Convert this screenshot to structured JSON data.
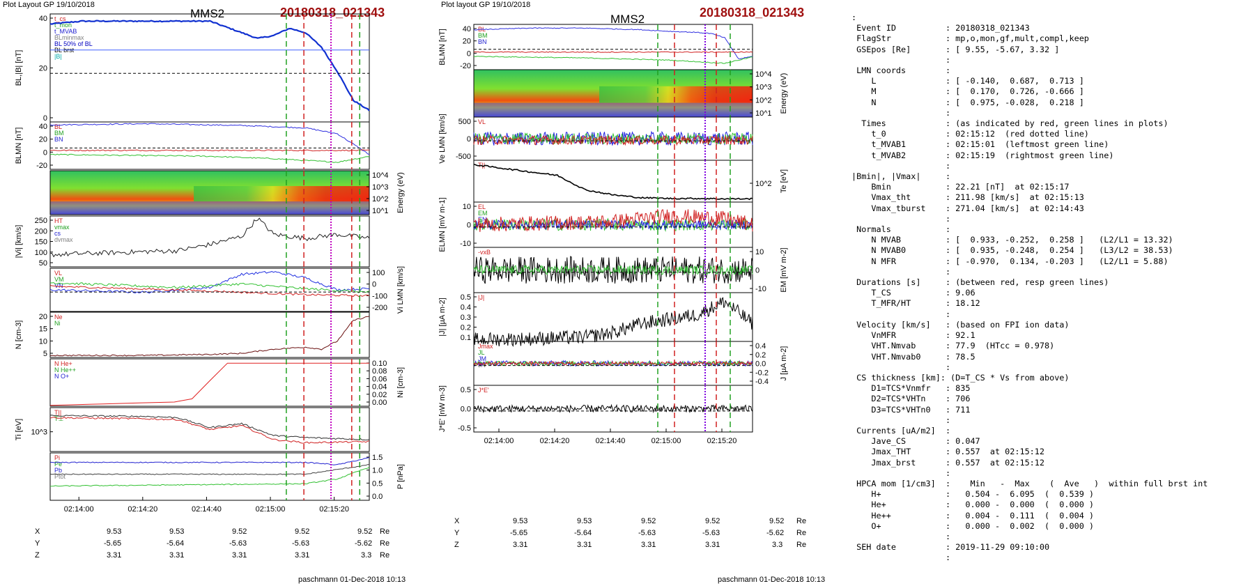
{
  "left": {
    "header": {
      "layout": "Plot Layout GP 19/10/2018",
      "sc": "MMS2",
      "event": "20180318_021343"
    },
    "time_ticks": [
      "02:14:00",
      "02:14:20",
      "02:14:40",
      "02:15:00",
      "02:15:20"
    ],
    "panels": [
      {
        "id": "B",
        "ylabel": "BL,|B| [nT]",
        "ticks": [
          "40",
          "20",
          "0"
        ],
        "legend": [
          "t_cs",
          "t_mon",
          "t_MVAB",
          "BLminmax",
          "BL 50% of BL",
          "BL brst",
          "|B|"
        ]
      },
      {
        "id": "BLMN",
        "ylabel": "BLMN [nT]",
        "ticks": [
          "40",
          "20",
          "0",
          "-20"
        ],
        "legend": [
          "BL",
          "BM",
          "BN"
        ]
      },
      {
        "id": "spec",
        "ylabel": "Energy (eV)",
        "ticks": [
          "10^4",
          "10^3",
          "10^2",
          "10^1"
        ]
      },
      {
        "id": "Vi",
        "ylabel": "|Vi| [km/s]",
        "ticks": [
          "250",
          "200",
          "150",
          "100",
          "50"
        ],
        "legend": [
          "HT",
          "vmax",
          "cs",
          "dvmax"
        ]
      },
      {
        "id": "ViLMN",
        "ylabel": "Vi LMN [km/s]",
        "ticks": [
          "100",
          "0",
          "-100",
          "-200"
        ],
        "legend": [
          "VL",
          "VM",
          "VN"
        ]
      },
      {
        "id": "N",
        "ylabel": "N [cm-3]",
        "ticks": [
          "20",
          "15",
          "10",
          "5"
        ],
        "legend": [
          "Ne",
          "Ni"
        ]
      },
      {
        "id": "Ni",
        "ylabel": "Ni [cm-3]",
        "ticks": [
          "0.10",
          "0.08",
          "0.06",
          "0.04",
          "0.02",
          "0.00"
        ],
        "legend": [
          "N He+",
          "N He++",
          "N O+"
        ]
      },
      {
        "id": "Ti",
        "ylabel": "Ti [eV]",
        "ticks": [
          "10^3"
        ],
        "legend": [
          "T||",
          "T⊥"
        ]
      },
      {
        "id": "P",
        "ylabel": "P [nPa]",
        "ticks": [
          "1.5",
          "1.0",
          "0.5",
          "0.0"
        ],
        "legend": [
          "Pi",
          "Pe",
          "Pb",
          "Ptot"
        ]
      }
    ],
    "pos": {
      "labels": [
        "X",
        "Y",
        "Z"
      ],
      "unit": "Re",
      "rows": [
        [
          "9.53",
          "9.53",
          "9.52",
          "9.52",
          "9.52"
        ],
        [
          "-5.65",
          "-5.64",
          "-5.63",
          "-5.63",
          "-5.62"
        ],
        [
          "3.31",
          "3.31",
          "3.31",
          "3.31",
          "3.3"
        ]
      ]
    },
    "signature": "paschmann 01-Dec-2018 10:13"
  },
  "mid": {
    "header": {
      "layout": "Plot layout GP 19/10/2018",
      "sc": "MMS2",
      "event": "20180318_021343"
    },
    "time_ticks": [
      "02:14:00",
      "02:14:20",
      "02:14:40",
      "02:15:00",
      "02:15:20"
    ],
    "panels": [
      {
        "id": "BLMN",
        "ylabel": "BLMN [nT]",
        "ticks": [
          "40",
          "20",
          "0",
          "-20"
        ],
        "legend": [
          "BL",
          "BM",
          "BN"
        ]
      },
      {
        "id": "spec",
        "ylabel": "Energy (eV)",
        "ticks": [
          "10^4",
          "10^3",
          "10^2",
          "10^1"
        ]
      },
      {
        "id": "Ve",
        "ylabel": "Ve LMN [km/s]",
        "ticks": [
          "500",
          "0",
          "-500"
        ],
        "legend": [
          "VL"
        ]
      },
      {
        "id": "Te",
        "ylabel": "Te [eV]",
        "ticks": [
          "10^2"
        ],
        "legend": [
          "T||"
        ]
      },
      {
        "id": "E",
        "ylabel": "ELMN [mV m-1]",
        "ticks": [
          "10",
          "0",
          "-10"
        ],
        "legend": [
          "EL",
          "EM",
          "EN"
        ]
      },
      {
        "id": "EM",
        "ylabel": "EM [mV m-2]",
        "ticks": [
          "10",
          "0",
          "-10"
        ],
        "legend": [
          "-vxB"
        ]
      },
      {
        "id": "J",
        "ylabel": "|J| [µA m-2]",
        "ticks": [
          "0.5",
          "0.4",
          "0.3",
          "0.2",
          "0.1"
        ],
        "legend": [
          "|J|"
        ]
      },
      {
        "id": "JLMN",
        "ylabel": "J [µA m-2]",
        "ticks": [
          "0.4",
          "0.2",
          "0.0",
          "-0.2",
          "-0.4"
        ],
        "legend": [
          "Jmax",
          "JL",
          "JM",
          "JN"
        ]
      },
      {
        "id": "JE",
        "ylabel": "J*E' [nW m-3]",
        "ticks": [
          "0.5",
          "0.0",
          "-0.5"
        ],
        "legend": [
          "J*E'"
        ]
      }
    ],
    "pos": {
      "labels": [
        "X",
        "Y",
        "Z"
      ],
      "unit": "Re",
      "rows": [
        [
          "9.53",
          "9.53",
          "9.52",
          "9.52",
          "9.52"
        ],
        [
          "-5.65",
          "-5.64",
          "-5.63",
          "-5.63",
          "-5.62"
        ],
        [
          "3.31",
          "3.31",
          "3.31",
          "3.31",
          "3.3"
        ]
      ]
    },
    "signature": "paschmann 01-Dec-2018 10:13"
  },
  "info_text": ":\n Event ID          : 20180318_021343\n FlagStr           : mp,o,mon,gf,mult,compl,keep\n GSEpos [Re]       : [ 9.55, -5.67, 3.32 ]\n                   :\n LMN coords        :\n    L              : [ -0.140,  0.687,  0.713 ]\n    M              : [  0.170,  0.726, -0.666 ]\n    N              : [  0.975, -0.028,  0.218 ]\n                   :\n  Times            : (as indicated by red, green lines in plots)\n    t_0            : 02:15:12  (red dotted line)\n    t_MVAB1        : 02:15:01  (leftmost green line)\n    t_MVAB2        : 02:15:19  (rightmost green line)\n                   :\n|Bmin|, |Vmax|     :\n    Bmin           : 22.21 [nT]  at 02:15:17\n    Vmax_tht       : 211.98 [km/s]  at 02:15:13\n    Vmax_tburst    : 271.04 [km/s]  at 02:14:43\n                   :\n Normals           :\n    N MVAB         : [  0.933, -0.252,  0.258 ]   (L2/L1 = 13.32)\n    N MVAB0        : [  0.935, -0.248,  0.254 ]   (L3/L2 = 38.53)\n    N MFR          : [ -0.970,  0.134, -0.203 ]   (L2/L1 = 5.88)\n                   :\n Durations [s]     : (between red, resp green lines)\n    T_CS           : 9.06\n    T_MFR/HT       : 18.12\n                   :\n Velocity [km/s]   : (based on FPI ion data)\n    VnMFR          : 92.1\n    VHT.Nmvab      : 77.9  (HTcc = 0.978)\n    VHT.Nmvab0     : 78.5\n                   :\n CS thickness [km]: (D=T_CS * Vs from above)\n    D1=TCS*Vnmfr   : 835\n    D2=TCS*VHTn    : 706\n    D3=TCS*VHTn0   : 711\n                   :\n Currents [uA/m2]  :\n    Jave_CS        : 0.047\n    Jmax_THT       : 0.557  at 02:15:12\n    Jmax_brst      : 0.557  at 02:15:12\n                   :\n HPCA mom [1/cm3]  :    Min   -  Max    (  Ave   )  within full brst int\n    H+             :   0.504 -  6.095  (  0.539 )\n    He+            :   0.000 -  0.000  (  0.000 )\n    He++           :   0.004 -  0.111  (  0.004 )\n    O+             :   0.000 -  0.002  (  0.000 )\n                   :\n SEH date          : 2019-11-29 09:10:00\n                   :",
  "chart_data": [
    {
      "type": "line",
      "title": "MMS2 20180318_021343",
      "x": "time",
      "xticks": [
        "02:14:00",
        "02:14:20",
        "02:14:40",
        "02:15:00",
        "02:15:20"
      ],
      "series": [
        {
          "name": "BL",
          "x": [
            0,
            10,
            20,
            30,
            40,
            50,
            55,
            60,
            65,
            70,
            75,
            80,
            85,
            90,
            95,
            100
          ],
          "values": [
            48,
            50,
            50,
            50,
            50,
            49,
            45,
            42,
            38,
            40,
            45,
            42,
            35,
            20,
            -5,
            -10
          ]
        },
        {
          "name": "|Vi|",
          "x": [
            0,
            20,
            40,
            50,
            55,
            60,
            65,
            70,
            80,
            90,
            100
          ],
          "values": [
            90,
            100,
            110,
            140,
            160,
            180,
            270,
            190,
            170,
            190,
            170
          ]
        },
        {
          "name": "Ne",
          "x": [
            0,
            30,
            50,
            60,
            70,
            80,
            85,
            90,
            95,
            100
          ],
          "values": [
            1,
            1,
            1.5,
            2,
            4,
            5,
            4,
            8,
            18,
            20
          ]
        },
        {
          "name": "He++",
          "x": [
            0,
            10,
            20,
            30,
            40,
            45,
            55,
            65,
            75
          ],
          "values": [
            0.002,
            0.004,
            0.006,
            0.008,
            0.01,
            0.018,
            0.1,
            0.1,
            0.1
          ]
        }
      ],
      "markers": {
        "red_dashed": [
          "02:15:06",
          "02:15:15"
        ],
        "red_dotted": "02:15:12",
        "green_dashed": [
          "02:15:01",
          "02:15:19"
        ]
      }
    },
    {
      "type": "line",
      "title": "MMS2 20180318_021343",
      "x": "time",
      "xticks": [
        "02:14:00",
        "02:14:20",
        "02:14:40",
        "02:15:00",
        "02:15:20"
      ],
      "series": [
        {
          "name": "BL",
          "x": [
            0,
            20,
            40,
            60,
            70,
            80,
            85,
            90,
            95,
            100
          ],
          "values": [
            45,
            48,
            48,
            45,
            42,
            40,
            38,
            30,
            -10,
            -5
          ]
        },
        {
          "name": "Te",
          "x": [
            0,
            20,
            30,
            40,
            50,
            60,
            70,
            80,
            90,
            100
          ],
          "values": [
            600,
            500,
            450,
            250,
            180,
            140,
            130,
            130,
            125,
            125
          ]
        },
        {
          "name": "|J|",
          "x": [
            0,
            20,
            40,
            50,
            60,
            70,
            80,
            90,
            100
          ],
          "values": [
            0.02,
            0.03,
            0.05,
            0.1,
            0.2,
            0.25,
            0.3,
            0.45,
            0.2
          ]
        }
      ]
    }
  ]
}
